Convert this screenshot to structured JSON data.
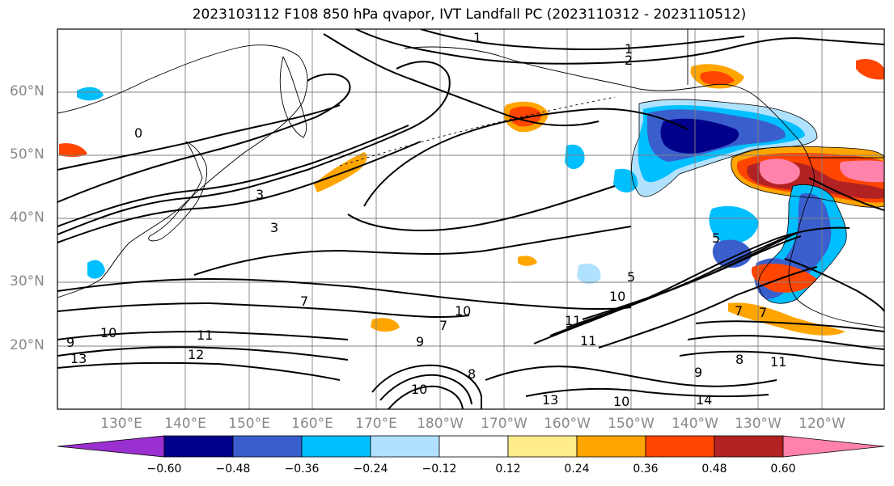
{
  "title": "2023103112 F108 850 hPa qvapor, IVT Landfall PC (2023110312 - 2023110512)",
  "lat_labels": [
    "60°N",
    "50°N",
    "40°N",
    "30°N",
    "20°N"
  ],
  "lon_labels": [
    "130°E",
    "140°E",
    "150°E",
    "160°E",
    "170°E",
    "180°W",
    "170°W",
    "160°W",
    "150°W",
    "140°W",
    "130°W",
    "120°W"
  ],
  "colorbar": {
    "ticks": [
      "−0.60",
      "−0.48",
      "−0.36",
      "−0.24",
      "−0.12",
      "0.12",
      "0.24",
      "0.36",
      "0.48",
      "0.60"
    ],
    "colors": [
      "#9b30d0",
      "#00008b",
      "#3a5fcd",
      "#00bfff",
      "#b0e2ff",
      "#ffffff",
      "#ffec8b",
      "#ffa500",
      "#ff4500",
      "#b22222",
      "#ff82ab"
    ]
  },
  "contour_labels": [
    "1",
    "2",
    "1",
    "0",
    "3",
    "3",
    "7",
    "5",
    "9",
    "10",
    "11",
    "12",
    "13",
    "10",
    "7",
    "9",
    "8",
    "10",
    "11",
    "11",
    "13",
    "10",
    "14",
    "8",
    "9",
    "11",
    "7",
    "7",
    "5",
    "10"
  ],
  "map": {
    "domain": "North Pacific",
    "lon_range": [
      "120°E",
      "115°W"
    ],
    "lat_range": [
      "10°N",
      "70°N"
    ],
    "contour_color": "#000000",
    "coastline_color": "#000000",
    "gridline_color": "#808080"
  }
}
